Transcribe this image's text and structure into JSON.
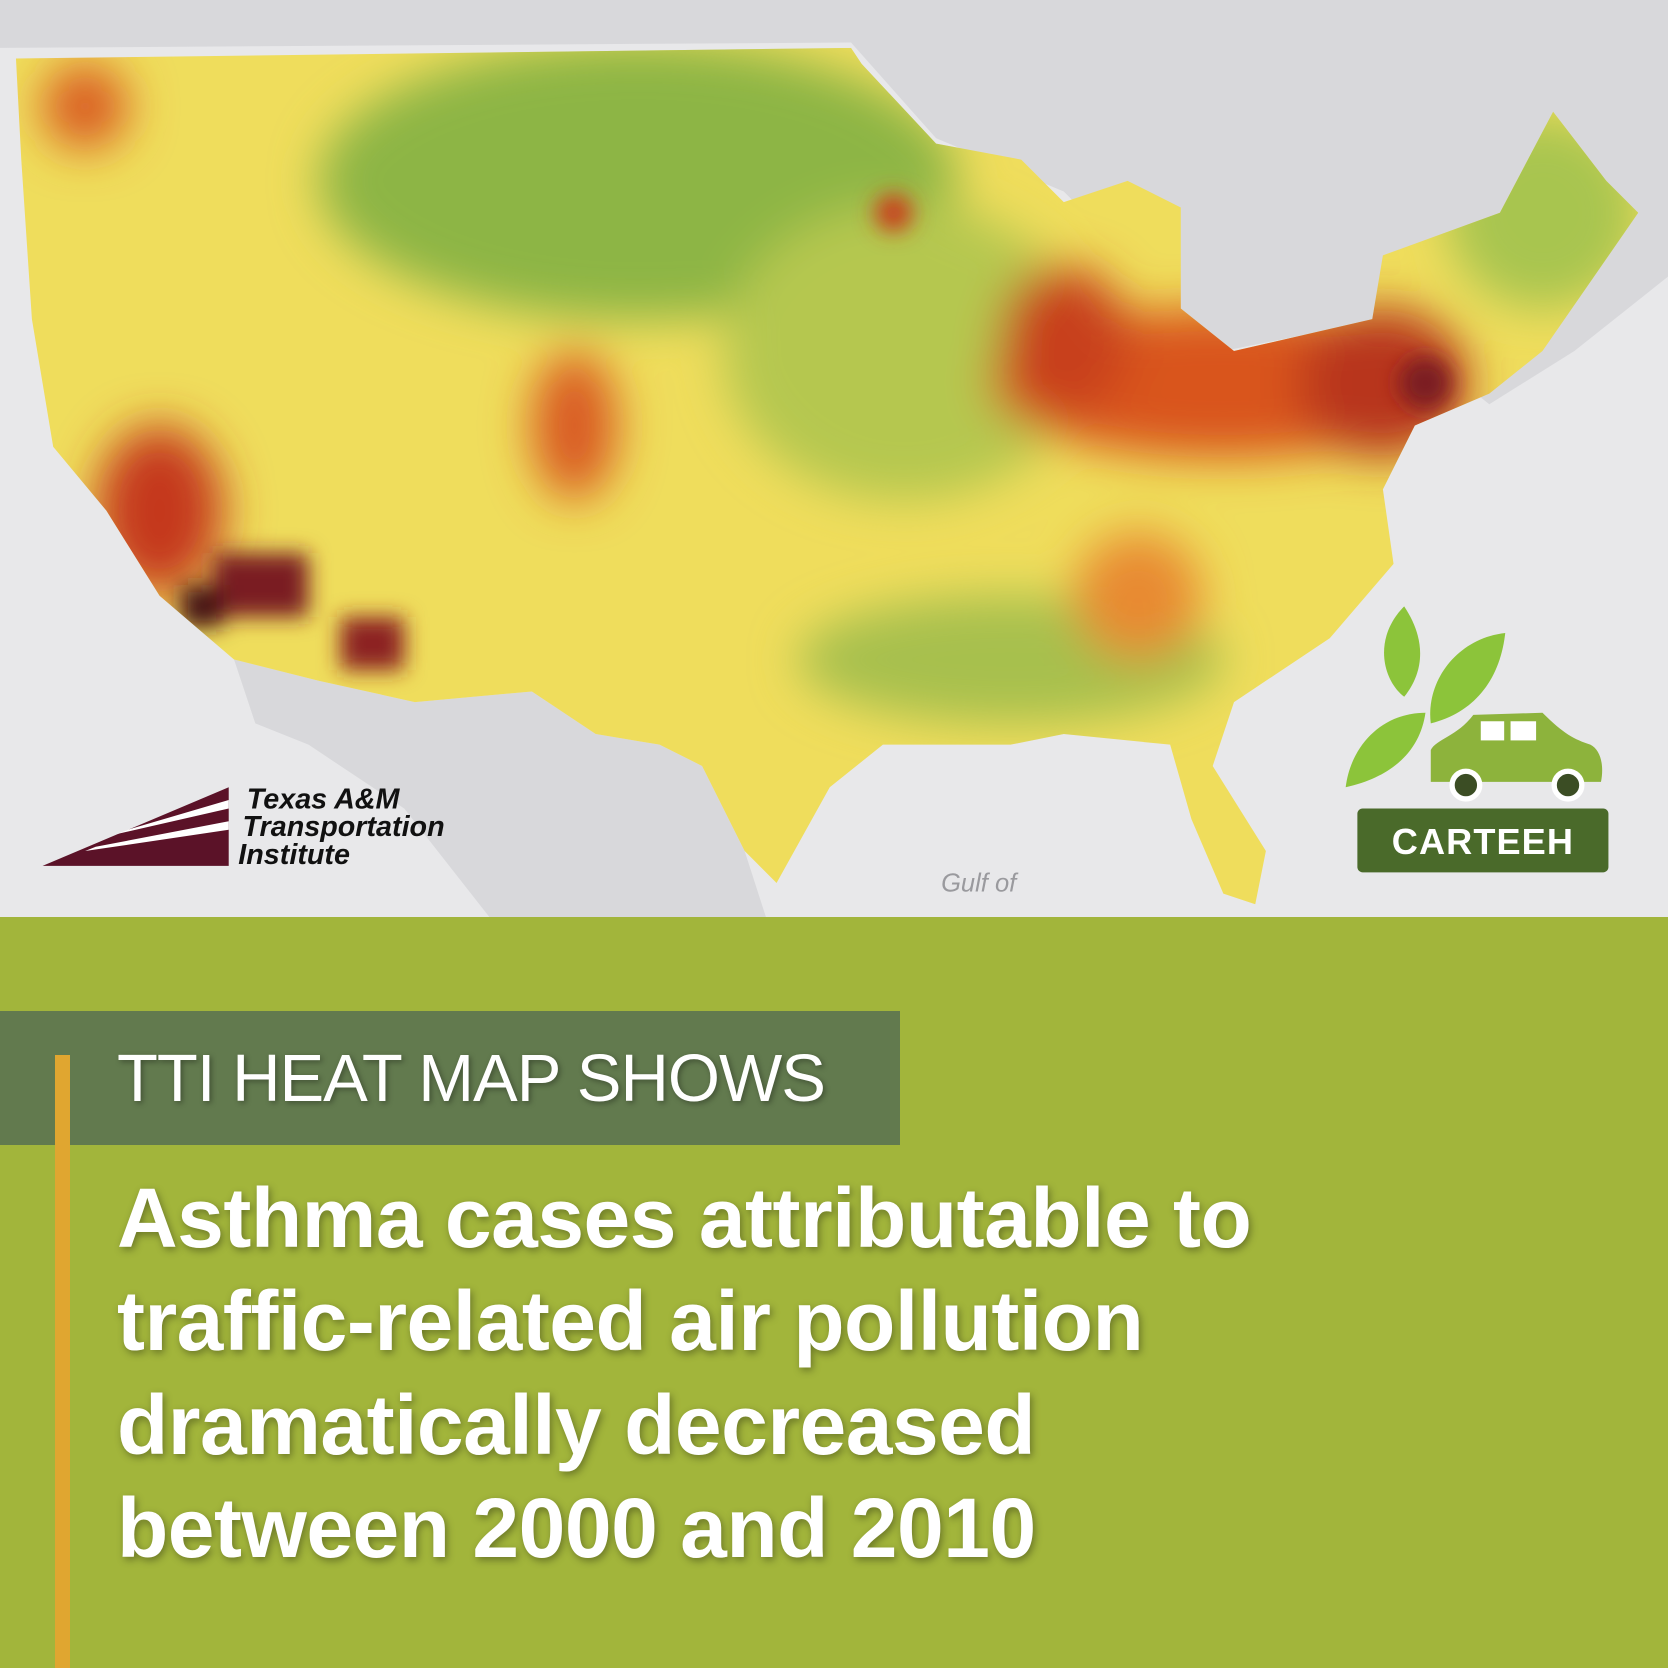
{
  "map": {
    "logo": {
      "lines": [
        "Texas A&M",
        "Transportation",
        "Institute"
      ]
    },
    "badge": "CARTEEH",
    "water_label": "Gulf of"
  },
  "header": {
    "kicker": "TTI HEAT MAP SHOWS",
    "headline": [
      "Asthma cases attributable to",
      "traffic-related air pollution",
      "dramatically decreased",
      "between 2000 and 2010"
    ]
  }
}
